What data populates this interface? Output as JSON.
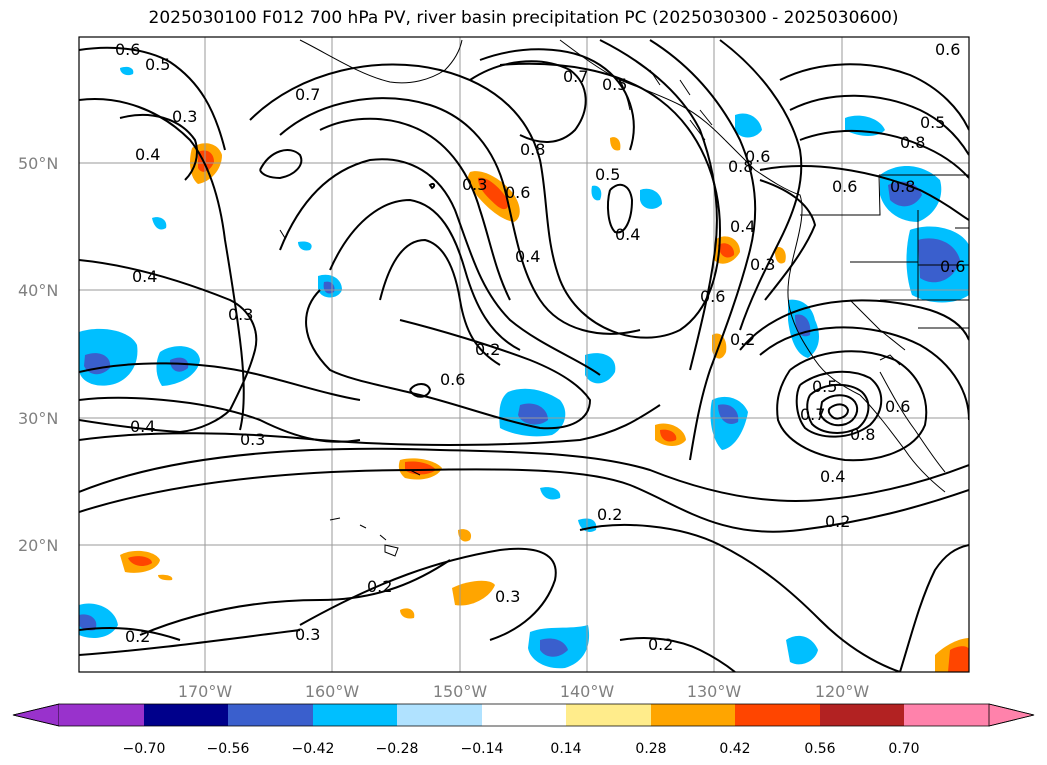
{
  "title": "2025030100 F012 700 hPa PV, river basin precipitation PC (2025030300 - 2025030600)",
  "lat_labels": [
    "50°N",
    "40°N",
    "30°N",
    "20°N"
  ],
  "lon_labels": [
    "170°W",
    "160°W",
    "150°W",
    "140°W",
    "130°W",
    "120°W"
  ],
  "colorbar": {
    "tick_labels": [
      "−0.70",
      "−0.56",
      "−0.42",
      "−0.28",
      "−0.14",
      "0.14",
      "0.28",
      "0.42",
      "0.56",
      "0.70"
    ],
    "colors": [
      "#9932cc",
      "#00008b",
      "#3a5fcd",
      "#00bfff",
      "#b0e2ff",
      "#ffffff",
      "#ffec8b",
      "#ffa500",
      "#ff4500",
      "#b22222",
      "#ff82ab"
    ]
  },
  "contour_labels": [
    "0.6",
    "0.5",
    "0.3",
    "0.4",
    "0.7",
    "0.5",
    "0.6",
    "0.8",
    "0.3",
    "0.6",
    "0.4",
    "0.5",
    "0.7",
    "0.4",
    "0.8",
    "0.6",
    "0.6",
    "0.4",
    "0.3",
    "0.2",
    "0.6",
    "0.4",
    "0.3",
    "0.5",
    "0.7",
    "0.8",
    "0.6",
    "0.4",
    "0.2",
    "0.2",
    "0.2",
    "0.3",
    "0.3",
    "0.2",
    "0.2",
    "0.6",
    "0.2",
    "0.8",
    "0.6",
    "0.5",
    "0.8",
    "0.3",
    "0.4"
  ],
  "map_layers": {
    "pv_contours": "black",
    "precipitation_shading": "filled",
    "coastlines": "black",
    "gridlines": "on"
  }
}
